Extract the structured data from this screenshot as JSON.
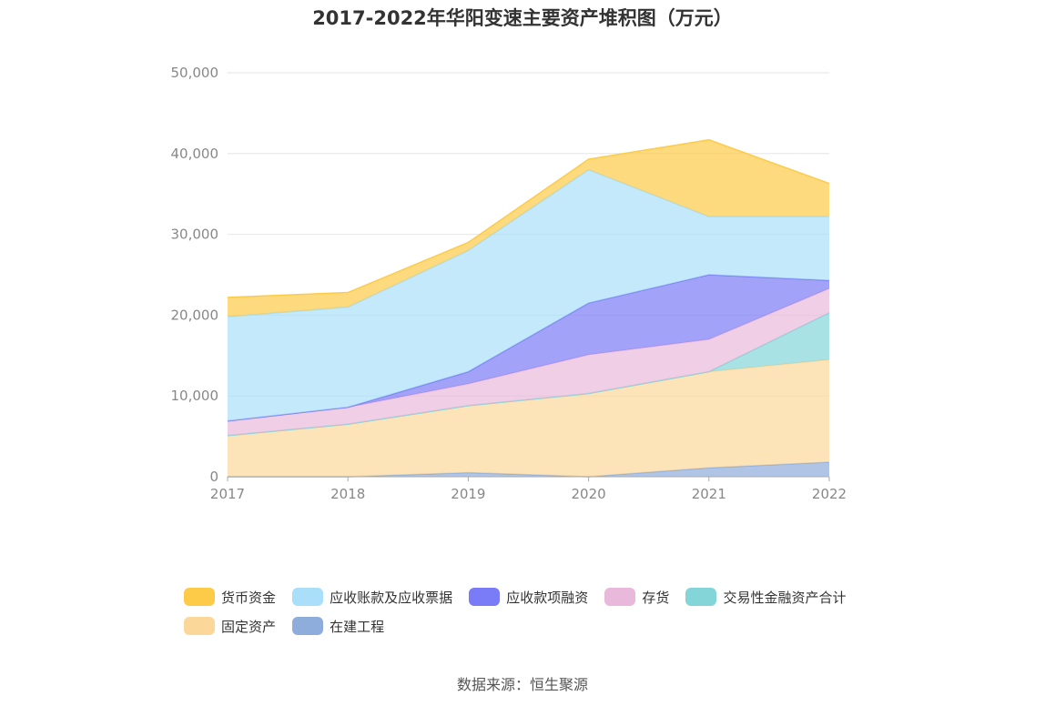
{
  "chart_data": {
    "type": "area",
    "stacked": true,
    "title": "2017-2022年华阳变速主要资产堆积图（万元）",
    "x": [
      "2017",
      "2018",
      "2019",
      "2020",
      "2021",
      "2022"
    ],
    "ylim": [
      0,
      50000
    ],
    "yticks": [
      0,
      10000,
      20000,
      30000,
      40000,
      50000
    ],
    "ytick_labels": [
      "0",
      "10,000",
      "20,000",
      "30,000",
      "40,000",
      "50,000"
    ],
    "grid": true,
    "legend_position": "bottom",
    "series": [
      {
        "name": "在建工程",
        "color": "#8EADDB",
        "values": [
          0,
          0,
          500,
          0,
          1100,
          1800
        ]
      },
      {
        "name": "固定资产",
        "color": "#FCD79A",
        "values": [
          5100,
          6500,
          8300,
          10300,
          11900,
          12700
        ]
      },
      {
        "name": "交易性金融资产合计",
        "color": "#84D5D8",
        "values": [
          0,
          0,
          0,
          0,
          0,
          5800
        ]
      },
      {
        "name": "存货",
        "color": "#E9B9DB",
        "values": [
          1800,
          2100,
          2700,
          4800,
          4000,
          3000
        ]
      },
      {
        "name": "应收款项融资",
        "color": "#7A7BF7",
        "values": [
          0,
          0,
          1500,
          6400,
          8000,
          1000
        ]
      },
      {
        "name": "应收账款及应收票据",
        "color": "#A9DFF8",
        "values": [
          12900,
          12400,
          15000,
          16500,
          7200,
          7900
        ]
      },
      {
        "name": "货币资金",
        "color": "#FECB49",
        "values": [
          2400,
          1800,
          1000,
          1300,
          9500,
          4100
        ]
      }
    ]
  },
  "legend": [
    {
      "name": "货币资金",
      "color": "#FECB49"
    },
    {
      "name": "应收账款及应收票据",
      "color": "#A9DFF8"
    },
    {
      "name": "应收款项融资",
      "color": "#7A7BF7"
    },
    {
      "name": "存货",
      "color": "#E9B9DB"
    },
    {
      "name": "交易性金融资产合计",
      "color": "#84D5D8"
    },
    {
      "name": "固定资产",
      "color": "#FCD79A"
    },
    {
      "name": "在建工程",
      "color": "#8EADDB"
    }
  ],
  "source": "数据来源：恒生聚源"
}
